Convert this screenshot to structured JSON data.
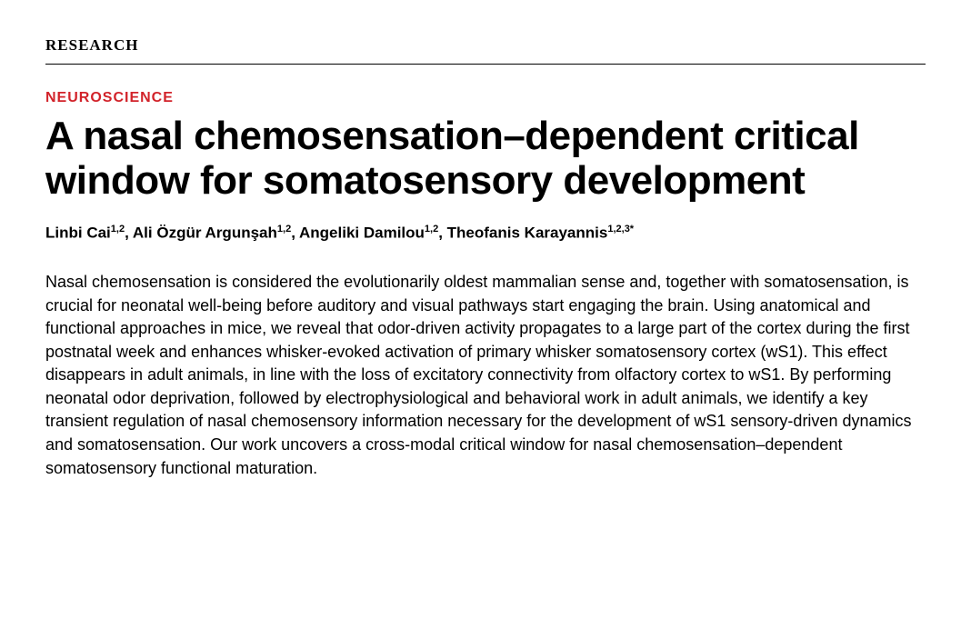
{
  "section_label": "RESEARCH",
  "category": "NEUROSCIENCE",
  "title": "A nasal chemosensation–dependent critical window for somatosensory development",
  "authors": [
    {
      "name": "Linbi Cai",
      "affil": "1,2"
    },
    {
      "name": "Ali Özgür Argunşah",
      "affil": "1,2"
    },
    {
      "name": "Angeliki Damilou",
      "affil": "1,2"
    },
    {
      "name": "Theofanis Karayannis",
      "affil": "1,2,3",
      "corresponding": true
    }
  ],
  "abstract": "Nasal chemosensation is considered the evolutionarily oldest mammalian sense and, together with somatosensation, is crucial for neonatal well-being before auditory and visual pathways start engaging the brain. Using anatomical and functional approaches in mice, we reveal that odor-driven activity propagates to a large part of the cortex during the first postnatal week and enhances whisker-evoked activation of primary whisker somatosensory cortex (wS1). This effect disappears in adult animals, in line with the loss of excitatory connectivity from olfactory cortex to wS1. By performing neonatal odor deprivation, followed by electrophysiological and behavioral work in adult animals, we identify a key transient regulation of nasal chemosensory information necessary for the development of wS1 sensory-driven dynamics and somatosensation. Our work uncovers a cross-modal critical window for nasal chemosensation–dependent somatosensory functional maturation.",
  "colors": {
    "category": "#d2232a",
    "text": "#000000",
    "background": "#ffffff",
    "rule": "#000000"
  },
  "typography": {
    "section_label_fontsize": 17,
    "category_fontsize": 16,
    "title_fontsize": 44,
    "authors_fontsize": 17,
    "abstract_fontsize": 18
  }
}
